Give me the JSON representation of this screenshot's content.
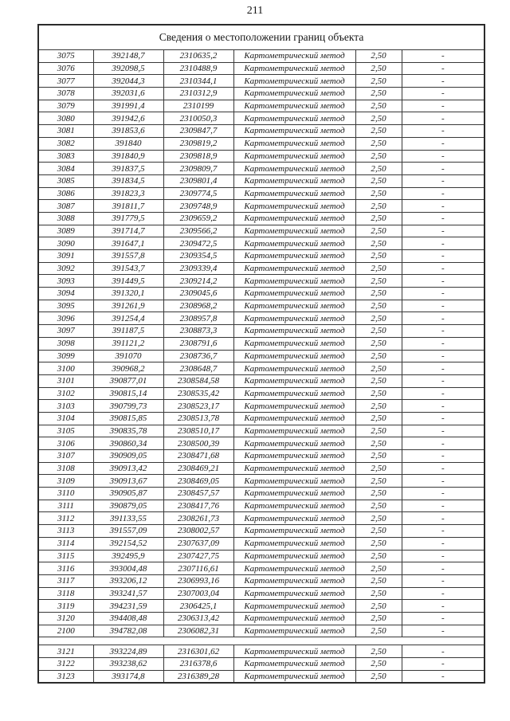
{
  "page": {
    "number": "211"
  },
  "table": {
    "title": "Сведения о местоположении границ объекта",
    "rows": [
      [
        "3075",
        "392148,7",
        "2310635,2",
        "Картометрический метод",
        "2,50",
        "-"
      ],
      [
        "3076",
        "392098,5",
        "2310488,9",
        "Картометрический метод",
        "2,50",
        "-"
      ],
      [
        "3077",
        "392044,3",
        "2310344,1",
        "Картометрический метод",
        "2,50",
        "-"
      ],
      [
        "3078",
        "392031,6",
        "2310312,9",
        "Картометрический метод",
        "2,50",
        "-"
      ],
      [
        "3079",
        "391991,4",
        "2310199",
        "Картометрический метод",
        "2,50",
        "-"
      ],
      [
        "3080",
        "391942,6",
        "2310050,3",
        "Картометрический метод",
        "2,50",
        "-"
      ],
      [
        "3081",
        "391853,6",
        "2309847,7",
        "Картометрический метод",
        "2,50",
        "-"
      ],
      [
        "3082",
        "391840",
        "2309819,2",
        "Картометрический метод",
        "2,50",
        "-"
      ],
      [
        "3083",
        "391840,9",
        "2309818,9",
        "Картометрический метод",
        "2,50",
        "-"
      ],
      [
        "3084",
        "391837,5",
        "2309809,7",
        "Картометрический метод",
        "2,50",
        "-"
      ],
      [
        "3085",
        "391834,5",
        "2309801,4",
        "Картометрический метод",
        "2,50",
        "-"
      ],
      [
        "3086",
        "391823,3",
        "2309774,5",
        "Картометрический метод",
        "2,50",
        "-"
      ],
      [
        "3087",
        "391811,7",
        "2309748,9",
        "Картометрический метод",
        "2,50",
        "-"
      ],
      [
        "3088",
        "391779,5",
        "2309659,2",
        "Картометрический метод",
        "2,50",
        "-"
      ],
      [
        "3089",
        "391714,7",
        "2309566,2",
        "Картометрический метод",
        "2,50",
        "-"
      ],
      [
        "3090",
        "391647,1",
        "2309472,5",
        "Картометрический метод",
        "2,50",
        "-"
      ],
      [
        "3091",
        "391557,8",
        "2309354,5",
        "Картометрический метод",
        "2,50",
        "-"
      ],
      [
        "3092",
        "391543,7",
        "2309339,4",
        "Картометрический метод",
        "2,50",
        "-"
      ],
      [
        "3093",
        "391449,5",
        "2309214,2",
        "Картометрический метод",
        "2,50",
        "-"
      ],
      [
        "3094",
        "391320,1",
        "2309045,6",
        "Картометрический метод",
        "2,50",
        "-"
      ],
      [
        "3095",
        "391261,9",
        "2308968,2",
        "Картометрический метод",
        "2,50",
        "-"
      ],
      [
        "3096",
        "391254,4",
        "2308957,8",
        "Картометрический метод",
        "2,50",
        "-"
      ],
      [
        "3097",
        "391187,5",
        "2308873,3",
        "Картометрический метод",
        "2,50",
        "-"
      ],
      [
        "3098",
        "391121,2",
        "2308791,6",
        "Картометрический метод",
        "2,50",
        "-"
      ],
      [
        "3099",
        "391070",
        "2308736,7",
        "Картометрический метод",
        "2,50",
        "-"
      ],
      [
        "3100",
        "390968,2",
        "2308648,7",
        "Картометрический метод",
        "2,50",
        "-"
      ],
      [
        "3101",
        "390877,01",
        "2308584,58",
        "Картометрический метод",
        "2,50",
        "-"
      ],
      [
        "3102",
        "390815,14",
        "2308535,42",
        "Картометрический метод",
        "2,50",
        "-"
      ],
      [
        "3103",
        "390799,73",
        "2308523,17",
        "Картометрический метод",
        "2,50",
        "-"
      ],
      [
        "3104",
        "390815,85",
        "2308513,78",
        "Картометрический метод",
        "2,50",
        "-"
      ],
      [
        "3105",
        "390835,78",
        "2308510,17",
        "Картометрический метод",
        "2,50",
        "-"
      ],
      [
        "3106",
        "390860,34",
        "2308500,39",
        "Картометрический метод",
        "2,50",
        "-"
      ],
      [
        "3107",
        "390909,05",
        "2308471,68",
        "Картометрический метод",
        "2,50",
        "-"
      ],
      [
        "3108",
        "390913,42",
        "2308469,21",
        "Картометрический метод",
        "2,50",
        "-"
      ],
      [
        "3109",
        "390913,67",
        "2308469,05",
        "Картометрический метод",
        "2,50",
        "-"
      ],
      [
        "3110",
        "390905,87",
        "2308457,57",
        "Картометрический метод",
        "2,50",
        "-"
      ],
      [
        "3111",
        "390879,05",
        "2308417,76",
        "Картометрический метод",
        "2,50",
        "-"
      ],
      [
        "3112",
        "391133,55",
        "2308261,73",
        "Картометрический метод",
        "2,50",
        "-"
      ],
      [
        "3113",
        "391557,09",
        "2308002,57",
        "Картометрический метод",
        "2,50",
        "-"
      ],
      [
        "3114",
        "392154,52",
        "2307637,09",
        "Картометрический метод",
        "2,50",
        "-"
      ],
      [
        "3115",
        "392495,9",
        "2307427,75",
        "Картометрический метод",
        "2,50",
        "-"
      ],
      [
        "3116",
        "393004,48",
        "2307116,61",
        "Картометрический метод",
        "2,50",
        "-"
      ],
      [
        "3117",
        "393206,12",
        "2306993,16",
        "Картометрический метод",
        "2,50",
        "-"
      ],
      [
        "3118",
        "393241,57",
        "2307003,04",
        "Картометрический метод",
        "2,50",
        "-"
      ],
      [
        "3119",
        "394231,59",
        "2306425,1",
        "Картометрический метод",
        "2,50",
        "-"
      ],
      [
        "3120",
        "394408,48",
        "2306313,42",
        "Картометрический метод",
        "2,50",
        "-"
      ],
      [
        "2100",
        "394782,08",
        "2306082,31",
        "Картометрический метод",
        "2,50",
        "-"
      ],
      [],
      [
        "3121",
        "393224,89",
        "2316301,62",
        "Картометрический метод",
        "2,50",
        "-"
      ],
      [
        "3122",
        "393238,62",
        "2316378,6",
        "Картометрический метод",
        "2,50",
        "-"
      ],
      [
        "3123",
        "393174,8",
        "2316389,28",
        "Картометрический метод",
        "2,50",
        "-"
      ]
    ]
  }
}
